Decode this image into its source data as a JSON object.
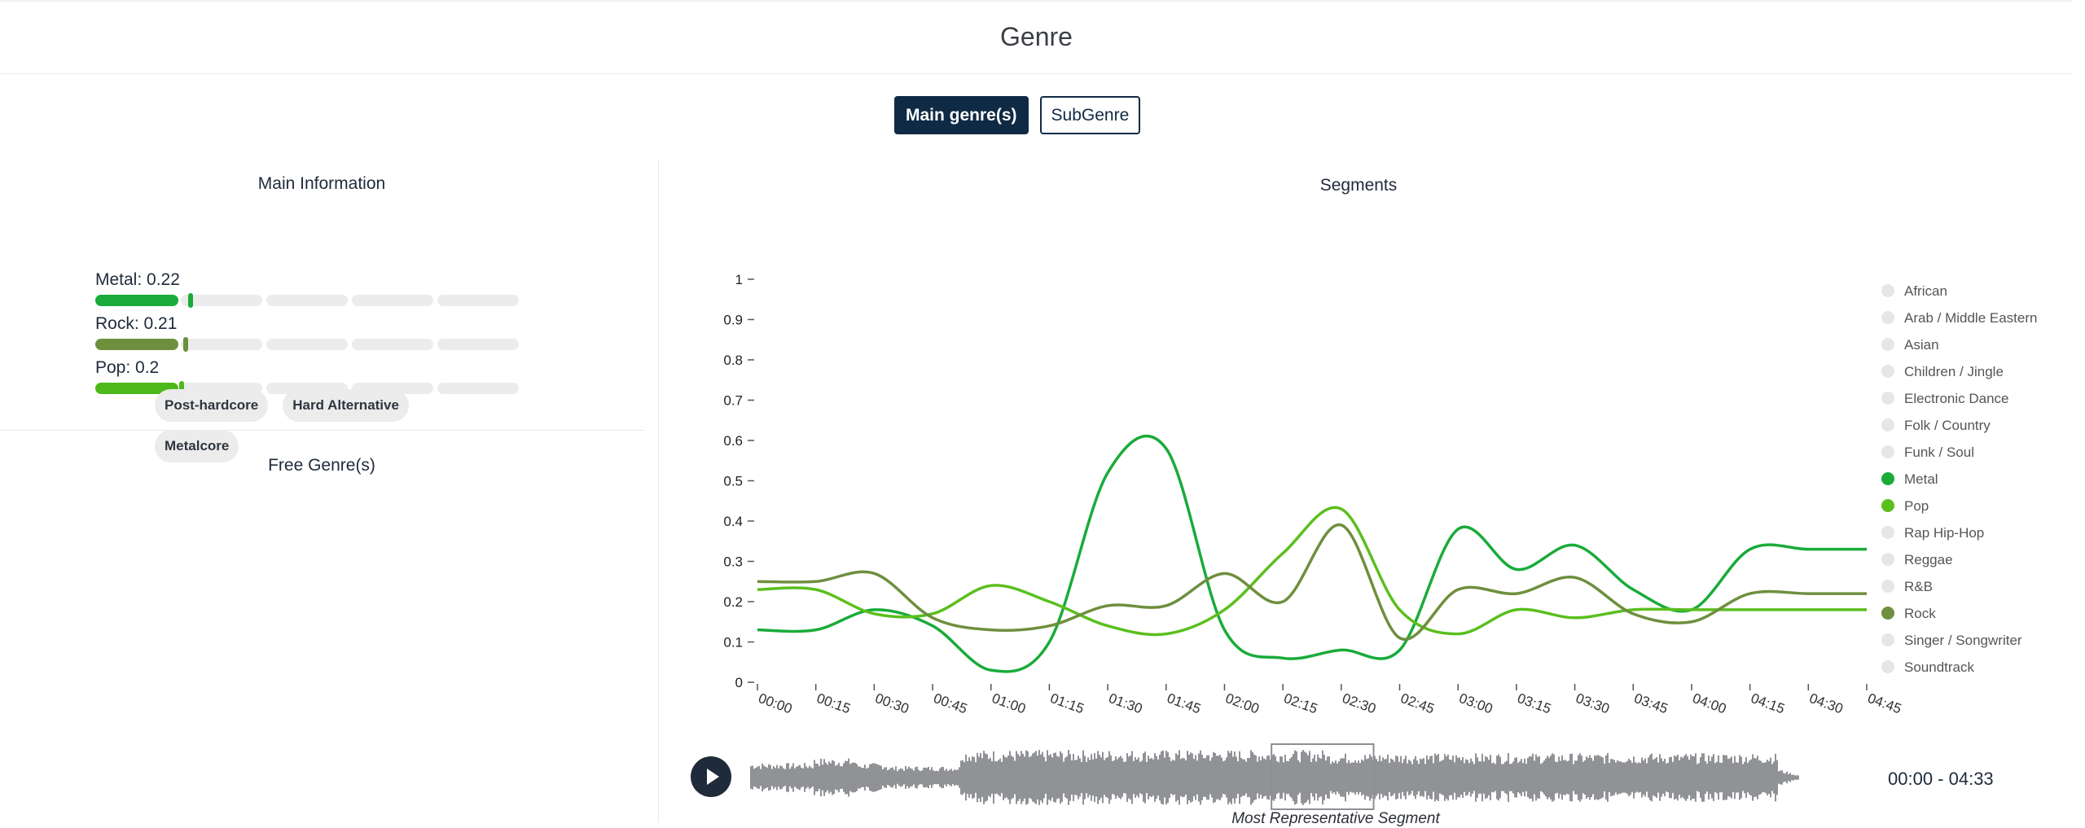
{
  "header": {
    "title": "Genre"
  },
  "tabs": [
    {
      "label": "Main genre(s)",
      "active": true
    },
    {
      "label": "SubGenre",
      "active": false
    }
  ],
  "main_info": {
    "title": "Main Information",
    "genres": [
      {
        "label": "Metal: 0.22",
        "value": 0.22,
        "color": "#1aab3a"
      },
      {
        "label": "Rock: 0.21",
        "value": 0.21,
        "color": "#6e8f3e"
      },
      {
        "label": "Pop: 0.2",
        "value": 0.2,
        "color": "#4db81a"
      }
    ]
  },
  "free_genres": {
    "title": "Free Genre(s)",
    "tags": [
      "Post-hardcore",
      "Hard Alternative",
      "Metalcore"
    ]
  },
  "chart_data": {
    "type": "line",
    "title": "Segments",
    "xlabel": "",
    "ylabel": "",
    "ylim": [
      0,
      1
    ],
    "yticks": [
      "0",
      "0.1",
      "0.2",
      "0.3",
      "0.4",
      "0.5",
      "0.6",
      "0.7",
      "0.8",
      "0.9",
      "1"
    ],
    "categories": [
      "00:00",
      "00:15",
      "00:30",
      "00:45",
      "01:00",
      "01:15",
      "01:30",
      "01:45",
      "02:00",
      "02:15",
      "02:30",
      "02:45",
      "03:00",
      "03:15",
      "03:30",
      "03:45",
      "04:00",
      "04:15",
      "04:30",
      "04:45"
    ],
    "legend_position": "right",
    "legend": [
      {
        "name": "African",
        "active": false
      },
      {
        "name": "Arab / Middle Eastern",
        "active": false
      },
      {
        "name": "Asian",
        "active": false
      },
      {
        "name": "Children / Jingle",
        "active": false
      },
      {
        "name": "Electronic Dance",
        "active": false
      },
      {
        "name": "Folk / Country",
        "active": false
      },
      {
        "name": "Funk / Soul",
        "active": false
      },
      {
        "name": "Metal",
        "active": true,
        "color": "#1aab3a"
      },
      {
        "name": "Pop",
        "active": true,
        "color": "#5bbf1e"
      },
      {
        "name": "Rap Hip-Hop",
        "active": false
      },
      {
        "name": "Reggae",
        "active": false
      },
      {
        "name": "R&B",
        "active": false
      },
      {
        "name": "Rock",
        "active": true,
        "color": "#6e8f3e"
      },
      {
        "name": "Singer / Songwriter",
        "active": false
      },
      {
        "name": "Soundtrack",
        "active": false
      }
    ],
    "series": [
      {
        "name": "Metal",
        "color": "#1aab3a",
        "values": [
          0.13,
          0.13,
          0.18,
          0.14,
          0.03,
          0.1,
          0.52,
          0.58,
          0.13,
          0.06,
          0.08,
          0.08,
          0.38,
          0.28,
          0.34,
          0.23,
          0.18,
          0.33,
          0.33,
          0.33
        ]
      },
      {
        "name": "Pop",
        "color": "#5bbf1e",
        "values": [
          0.23,
          0.23,
          0.17,
          0.17,
          0.24,
          0.2,
          0.14,
          0.12,
          0.18,
          0.32,
          0.43,
          0.18,
          0.12,
          0.18,
          0.16,
          0.18,
          0.18,
          0.18,
          0.18,
          0.18
        ]
      },
      {
        "name": "Rock",
        "color": "#6e8f3e",
        "values": [
          0.25,
          0.25,
          0.27,
          0.16,
          0.13,
          0.14,
          0.19,
          0.19,
          0.27,
          0.2,
          0.39,
          0.11,
          0.23,
          0.22,
          0.26,
          0.17,
          0.15,
          0.22,
          0.22,
          0.22
        ]
      }
    ]
  },
  "player": {
    "time_range": "00:00 - 04:33",
    "representative_label": "Most Representative Segment",
    "segment_start": "02:15",
    "segment_end": "02:45"
  },
  "colors": {
    "accent": "#0f2a44",
    "bar_track": "#ececec",
    "waveform": "#909296"
  }
}
